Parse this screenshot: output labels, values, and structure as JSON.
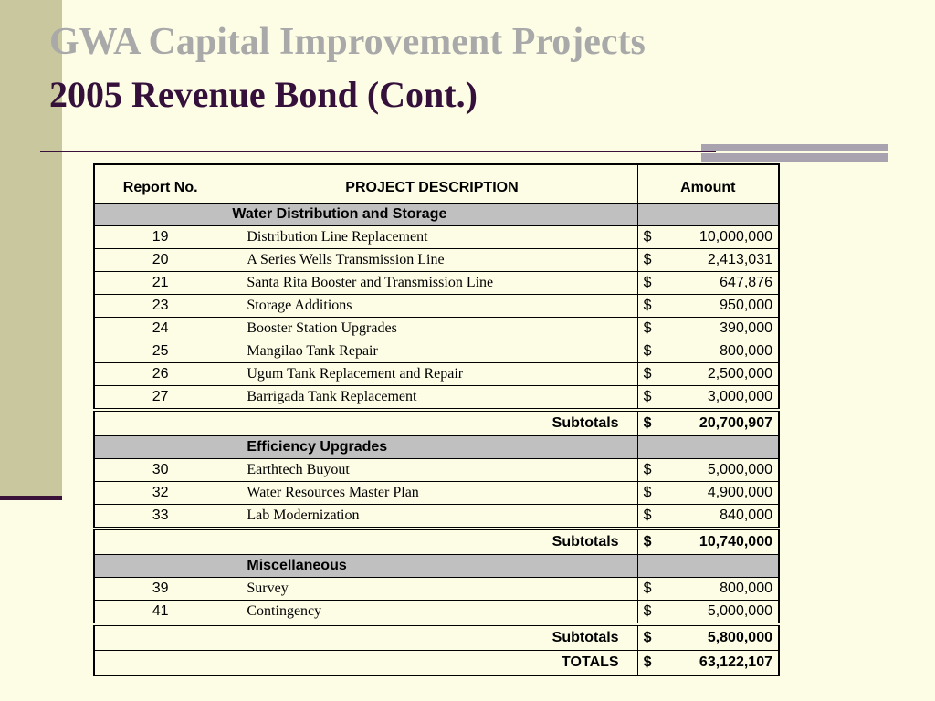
{
  "title": {
    "line1": "GWA Capital Improvement Projects",
    "line2": "2005 Revenue Bond (Cont.)"
  },
  "colors": {
    "background": "#fdfde6",
    "side_bar": "#c9c79e",
    "title_gray": "#a9a9a9",
    "title_dark": "#34103a",
    "section_fill": "#c0c0c0"
  },
  "table": {
    "headers": {
      "report_no": "Report No.",
      "description": "PROJECT DESCRIPTION",
      "amount": "Amount"
    },
    "currency": "$",
    "sections": [
      {
        "name": "Water Distribution and Storage",
        "rows": [
          {
            "report_no": "19",
            "description": "Distribution Line Replacement",
            "amount": "10,000,000"
          },
          {
            "report_no": "20",
            "description": "A Series Wells Transmission Line",
            "amount": "2,413,031"
          },
          {
            "report_no": "21",
            "description": "Santa Rita Booster and Transmission Line",
            "amount": "647,876"
          },
          {
            "report_no": "23",
            "description": "Storage Additions",
            "amount": "950,000"
          },
          {
            "report_no": "24",
            "description": "Booster Station Upgrades",
            "amount": "390,000"
          },
          {
            "report_no": "25",
            "description": "Mangilao Tank Repair",
            "amount": "800,000"
          },
          {
            "report_no": "26",
            "description": "Ugum Tank Replacement and Repair",
            "amount": "2,500,000"
          },
          {
            "report_no": "27",
            "description": "Barrigada Tank Replacement",
            "amount": "3,000,000"
          }
        ],
        "subtotal_label": "Subtotals",
        "subtotal": "20,700,907"
      },
      {
        "name": "Efficiency Upgrades",
        "rows": [
          {
            "report_no": "30",
            "description": "Earthtech Buyout",
            "amount": "5,000,000"
          },
          {
            "report_no": "32",
            "description": "Water Resources Master Plan",
            "amount": "4,900,000"
          },
          {
            "report_no": "33",
            "description": "Lab Modernization",
            "amount": "840,000"
          }
        ],
        "subtotal_label": "Subtotals",
        "subtotal": "10,740,000"
      },
      {
        "name": "Miscellaneous",
        "rows": [
          {
            "report_no": "39",
            "description": "Survey",
            "amount": "800,000"
          },
          {
            "report_no": "41",
            "description": "Contingency",
            "amount": "5,000,000"
          }
        ],
        "subtotal_label": "Subtotals",
        "subtotal": "5,800,000"
      }
    ],
    "totals_label": "TOTALS",
    "totals": "63,122,107"
  }
}
